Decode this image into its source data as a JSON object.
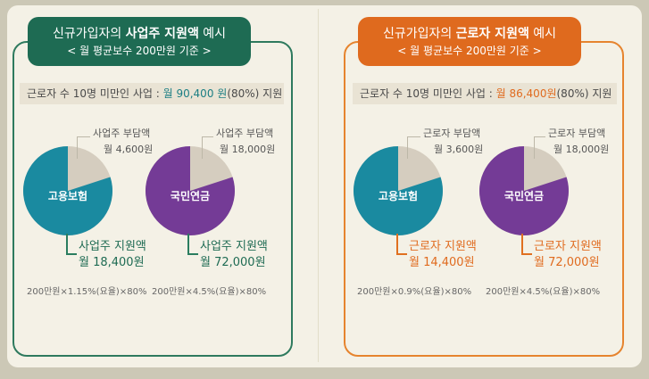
{
  "colors": {
    "employer_header": "#1e6b53",
    "worker_header": "#df6a1e",
    "employment_insurance": "#1a8aa0",
    "national_pension": "#743b96",
    "burden_slice": "#d5cdbf"
  },
  "left": {
    "title_prefix": "신규가입자의 ",
    "title_bold": "사업주 지원액",
    "title_suffix": " 예시",
    "subtitle": "< 월 평균보수 200만원 기준 >",
    "band_prefix": "근로자 수 10명 미만인 사업 : ",
    "band_amount": "월 90,400 원",
    "band_suffix": "(80%) 지원",
    "pie1": {
      "label": "고용보험",
      "burden_title": "사업주 부담액",
      "burden_amount": "월 4,600원",
      "support_title": "사업주 지원액",
      "support_amount": "월 18,400원",
      "support_fraction": 0.8,
      "formula": "200만원×1.15%(요율)×80%"
    },
    "pie2": {
      "label": "국민연금",
      "burden_title": "사업주 부담액",
      "burden_amount": "월 18,000원",
      "support_title": "사업주 지원액",
      "support_amount": "월 72,000원",
      "support_fraction": 0.8,
      "formula": "200만원×4.5%(요율)×80%"
    }
  },
  "right": {
    "title_prefix": "신규가입자의 ",
    "title_bold": "근로자 지원액",
    "title_suffix": " 예시",
    "subtitle": "< 월 평균보수 200만원 기준 >",
    "band_prefix": "근로자 수 10명 미만인 사업 : ",
    "band_amount": "월 86,400원",
    "band_suffix": "(80%) 지원",
    "pie1": {
      "label": "고용보험",
      "burden_title": "근로자 부담액",
      "burden_amount": "월 3,600원",
      "support_title": "근로자 지원액",
      "support_amount": "월 14,400원",
      "support_fraction": 0.8,
      "formula": "200만원×0.9%(요율)×80%"
    },
    "pie2": {
      "label": "국민연금",
      "burden_title": "근로자 부담액",
      "burden_amount": "월 18,000원",
      "support_title": "근로자 지원액",
      "support_amount": "월 72,000원",
      "support_fraction": 0.8,
      "formula": "200만원×4.5%(요율)×80%"
    }
  }
}
